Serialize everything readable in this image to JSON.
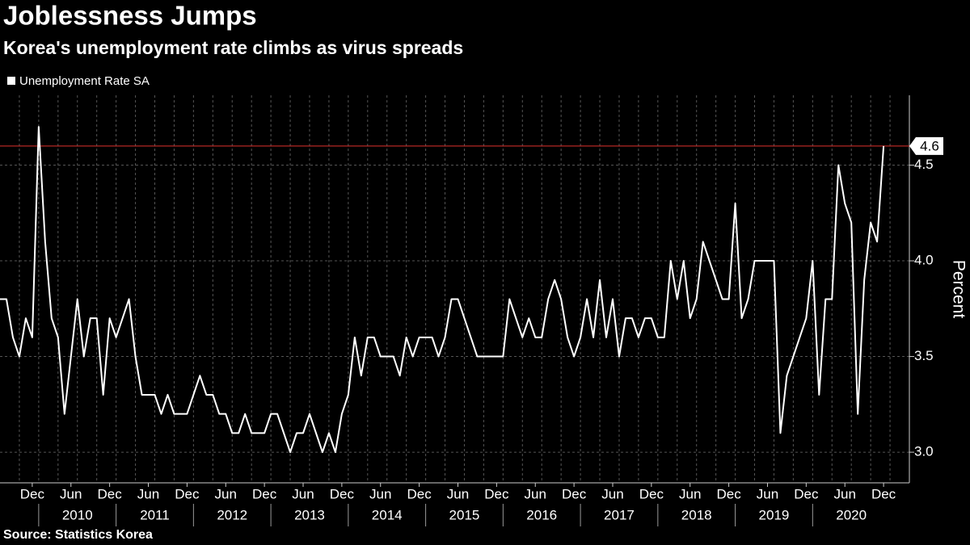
{
  "chart_data": {
    "type": "line",
    "title": "Joblessness Jumps",
    "subtitle": "Korea's unemployment rate climbs as virus spreads",
    "source": "Source: Statistics Korea",
    "y_label": "Percent",
    "x": [
      "2009-07",
      "2009-08",
      "2009-09",
      "2009-10",
      "2009-11",
      "2009-12",
      "2010-01",
      "2010-02",
      "2010-03",
      "2010-04",
      "2010-05",
      "2010-06",
      "2010-07",
      "2010-08",
      "2010-09",
      "2010-10",
      "2010-11",
      "2010-12",
      "2011-01",
      "2011-02",
      "2011-03",
      "2011-04",
      "2011-05",
      "2011-06",
      "2011-07",
      "2011-08",
      "2011-09",
      "2011-10",
      "2011-11",
      "2011-12",
      "2012-01",
      "2012-02",
      "2012-03",
      "2012-04",
      "2012-05",
      "2012-06",
      "2012-07",
      "2012-08",
      "2012-09",
      "2012-10",
      "2012-11",
      "2012-12",
      "2013-01",
      "2013-02",
      "2013-03",
      "2013-04",
      "2013-05",
      "2013-06",
      "2013-07",
      "2013-08",
      "2013-09",
      "2013-10",
      "2013-11",
      "2013-12",
      "2014-01",
      "2014-02",
      "2014-03",
      "2014-04",
      "2014-05",
      "2014-06",
      "2014-07",
      "2014-08",
      "2014-09",
      "2014-10",
      "2014-11",
      "2014-12",
      "2015-01",
      "2015-02",
      "2015-03",
      "2015-04",
      "2015-05",
      "2015-06",
      "2015-07",
      "2015-08",
      "2015-09",
      "2015-10",
      "2015-11",
      "2015-12",
      "2016-01",
      "2016-02",
      "2016-03",
      "2016-04",
      "2016-05",
      "2016-06",
      "2016-07",
      "2016-08",
      "2016-09",
      "2016-10",
      "2016-11",
      "2016-12",
      "2017-01",
      "2017-02",
      "2017-03",
      "2017-04",
      "2017-05",
      "2017-06",
      "2017-07",
      "2017-08",
      "2017-09",
      "2017-10",
      "2017-11",
      "2017-12",
      "2018-01",
      "2018-02",
      "2018-03",
      "2018-04",
      "2018-05",
      "2018-06",
      "2018-07",
      "2018-08",
      "2018-09",
      "2018-10",
      "2018-11",
      "2018-12",
      "2019-01",
      "2019-02",
      "2019-03",
      "2019-04",
      "2019-05",
      "2019-06",
      "2019-07",
      "2019-08",
      "2019-09",
      "2019-10",
      "2019-11",
      "2019-12",
      "2020-01",
      "2020-02",
      "2020-03",
      "2020-04",
      "2020-05",
      "2020-06",
      "2020-07",
      "2020-08",
      "2020-09",
      "2020-10",
      "2020-11",
      "2020-12"
    ],
    "series": [
      {
        "name": "Unemployment Rate SA",
        "color": "#ffffff",
        "values": [
          3.8,
          3.8,
          3.6,
          3.5,
          3.7,
          3.6,
          4.7,
          4.1,
          3.7,
          3.6,
          3.2,
          3.5,
          3.8,
          3.5,
          3.7,
          3.7,
          3.3,
          3.7,
          3.6,
          3.7,
          3.8,
          3.5,
          3.3,
          3.3,
          3.3,
          3.2,
          3.3,
          3.2,
          3.2,
          3.2,
          3.3,
          3.4,
          3.3,
          3.3,
          3.2,
          3.2,
          3.1,
          3.1,
          3.2,
          3.1,
          3.1,
          3.1,
          3.2,
          3.2,
          3.1,
          3.0,
          3.1,
          3.1,
          3.2,
          3.1,
          3.0,
          3.1,
          3.0,
          3.2,
          3.3,
          3.6,
          3.4,
          3.6,
          3.6,
          3.5,
          3.5,
          3.5,
          3.4,
          3.6,
          3.5,
          3.6,
          3.6,
          3.6,
          3.5,
          3.6,
          3.8,
          3.8,
          3.7,
          3.6,
          3.5,
          3.5,
          3.5,
          3.5,
          3.5,
          3.8,
          3.7,
          3.6,
          3.7,
          3.6,
          3.6,
          3.8,
          3.9,
          3.8,
          3.6,
          3.5,
          3.6,
          3.8,
          3.6,
          3.9,
          3.6,
          3.8,
          3.5,
          3.7,
          3.7,
          3.6,
          3.7,
          3.7,
          3.6,
          3.6,
          4.0,
          3.8,
          4.0,
          3.7,
          3.8,
          4.1,
          4.0,
          3.9,
          3.8,
          3.8,
          4.3,
          3.7,
          3.8,
          4.0,
          4.0,
          4.0,
          4.0,
          3.1,
          3.4,
          3.5,
          3.6,
          3.7,
          4.0,
          3.3,
          3.8,
          3.8,
          4.5,
          4.3,
          4.2,
          3.2,
          3.9,
          4.2,
          4.1,
          4.6
        ]
      }
    ],
    "xlim": [
      "2009-07",
      "2021-04"
    ],
    "xticks": [
      {
        "value": "2009-12",
        "label": "Dec"
      },
      {
        "value": "2010-06",
        "label": "Jun"
      },
      {
        "value": "2010-12",
        "label": "Dec"
      },
      {
        "value": "2011-06",
        "label": "Jun"
      },
      {
        "value": "2011-12",
        "label": "Dec"
      },
      {
        "value": "2012-06",
        "label": "Jun"
      },
      {
        "value": "2012-12",
        "label": "Dec"
      },
      {
        "value": "2013-06",
        "label": "Jun"
      },
      {
        "value": "2013-12",
        "label": "Dec"
      },
      {
        "value": "2014-06",
        "label": "Jun"
      },
      {
        "value": "2014-12",
        "label": "Dec"
      },
      {
        "value": "2015-06",
        "label": "Jun"
      },
      {
        "value": "2015-12",
        "label": "Dec"
      },
      {
        "value": "2016-06",
        "label": "Jun"
      },
      {
        "value": "2016-12",
        "label": "Dec"
      },
      {
        "value": "2017-06",
        "label": "Jun"
      },
      {
        "value": "2017-12",
        "label": "Dec"
      },
      {
        "value": "2018-06",
        "label": "Jun"
      },
      {
        "value": "2018-12",
        "label": "Dec"
      },
      {
        "value": "2019-06",
        "label": "Jun"
      },
      {
        "value": "2019-12",
        "label": "Dec"
      },
      {
        "value": "2020-06",
        "label": "Jun"
      },
      {
        "value": "2020-12",
        "label": "Dec"
      }
    ],
    "year_ticks": [
      2010,
      2011,
      2012,
      2013,
      2014,
      2015,
      2016,
      2017,
      2018,
      2019,
      2020
    ],
    "ylim": [
      2.84,
      4.865
    ],
    "yticks": [
      {
        "value": 3,
        "label": "3.0"
      },
      3.5,
      {
        "value": 4,
        "label": "4.0"
      },
      4.5
    ],
    "grid": true,
    "last_value_line_color": "#e0322e"
  }
}
